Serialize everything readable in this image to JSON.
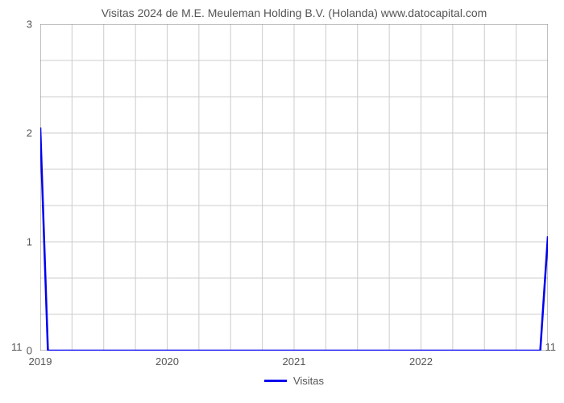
{
  "chart": {
    "type": "line",
    "title": "Visitas 2024 de M.E. Meuleman Holding B.V. (Holanda) www.datocapital.com",
    "title_fontsize": 14,
    "title_color": "#555555",
    "background_color": "#ffffff",
    "plot_border_color": "#808080",
    "plot_border_width": 1,
    "grid_color": "#cccccc",
    "grid_width": 1,
    "yaxis": {
      "min": 0,
      "max": 3,
      "ticks": [
        0,
        1,
        2,
        3
      ],
      "tick_labels": [
        "0",
        "1",
        "2",
        "3"
      ],
      "tick_fontsize": 13,
      "tick_color": "#555555"
    },
    "xaxis": {
      "grid_step": 0.25,
      "tick_positions": [
        2019,
        2020,
        2021,
        2022
      ],
      "tick_labels": [
        "2019",
        "2020",
        "2021",
        "2022"
      ],
      "tick_fontsize": 13,
      "tick_color": "#555555",
      "domain_min": 2019,
      "domain_max": 2023
    },
    "series": {
      "name": "Visitas",
      "color": "#0000ee",
      "line_width": 2.5,
      "points_x": [
        2019,
        2019.06,
        2022.94,
        2023
      ],
      "points_y": [
        2.05,
        0,
        0,
        1.05
      ]
    },
    "corner_labels": {
      "bottom_left": "11",
      "bottom_right": "11",
      "fontsize": 13,
      "color": "#555555"
    },
    "legend": {
      "label": "Visitas",
      "swatch_color": "#0000ee",
      "fontsize": 13,
      "text_color": "#555555"
    }
  }
}
